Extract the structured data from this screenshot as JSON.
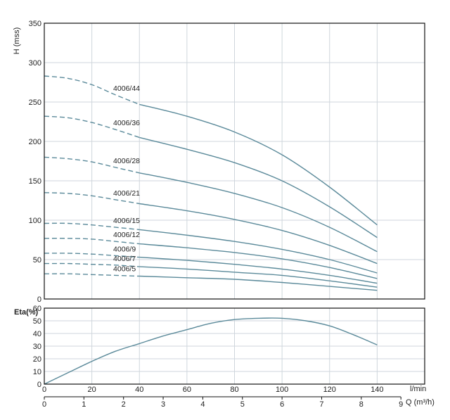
{
  "chart_data": [
    {
      "type": "line",
      "ylabel": "H (mss)",
      "ylim": [
        0,
        350
      ],
      "yticks": [
        0,
        50,
        100,
        150,
        200,
        250,
        300,
        350
      ],
      "x_unit": "l/min",
      "xlim": [
        0,
        160
      ],
      "grid": true,
      "dashed_region_max_x": 40,
      "series": [
        {
          "name": "4006/44",
          "x": [
            0,
            10,
            20,
            30,
            40,
            60,
            80,
            100,
            120,
            140
          ],
          "values": [
            283,
            280,
            272,
            259,
            247,
            232,
            212,
            183,
            142,
            94
          ]
        },
        {
          "name": "4006/36",
          "x": [
            0,
            10,
            20,
            30,
            40,
            60,
            80,
            100,
            120,
            140
          ],
          "values": [
            232,
            230,
            224,
            215,
            205,
            190,
            173,
            150,
            117,
            78
          ]
        },
        {
          "name": "4006/28",
          "x": [
            0,
            10,
            20,
            30,
            40,
            60,
            80,
            100,
            120,
            140
          ],
          "values": [
            180,
            178,
            174,
            167,
            160,
            148,
            134,
            116,
            91,
            60
          ]
        },
        {
          "name": "4006/21",
          "x": [
            0,
            10,
            20,
            30,
            40,
            60,
            80,
            100,
            120,
            140
          ],
          "values": [
            135,
            134,
            131,
            126,
            121,
            112,
            101,
            87,
            68,
            45
          ]
        },
        {
          "name": "4006/15",
          "x": [
            0,
            10,
            20,
            30,
            40,
            60,
            80,
            100,
            120,
            140
          ],
          "values": [
            96,
            96,
            94,
            91,
            88,
            81,
            73,
            63,
            50,
            33
          ]
        },
        {
          "name": "4006/12",
          "x": [
            0,
            10,
            20,
            30,
            40,
            60,
            80,
            100,
            120,
            140
          ],
          "values": [
            77,
            77,
            76,
            73,
            70,
            65,
            59,
            51,
            40,
            26
          ]
        },
        {
          "name": "4006/9",
          "x": [
            0,
            10,
            20,
            30,
            40,
            60,
            80,
            100,
            120,
            140
          ],
          "values": [
            58,
            58,
            57,
            55,
            53,
            49,
            44,
            38,
            30,
            20
          ]
        },
        {
          "name": "4006/7",
          "x": [
            0,
            10,
            20,
            30,
            40,
            60,
            80,
            100,
            120,
            140
          ],
          "values": [
            45,
            45,
            44,
            43,
            41,
            38,
            34,
            30,
            23,
            15
          ]
        },
        {
          "name": "4006/5",
          "x": [
            0,
            10,
            20,
            30,
            40,
            60,
            80,
            100,
            120,
            140
          ],
          "values": [
            32,
            32,
            31,
            30,
            29,
            27,
            25,
            21,
            16,
            11
          ]
        }
      ]
    },
    {
      "type": "line",
      "ylabel": "Eta(%)",
      "ylim": [
        0,
        60
      ],
      "yticks": [
        0,
        10,
        20,
        30,
        40,
        50,
        60
      ],
      "x_unit": "l/min",
      "xlim": [
        0,
        160
      ],
      "grid": true,
      "series": [
        {
          "name": "",
          "x": [
            0,
            10,
            20,
            30,
            40,
            50,
            60,
            70,
            80,
            90,
            100,
            110,
            120,
            130,
            140
          ],
          "values": [
            0,
            9,
            18,
            26,
            32,
            38,
            43,
            48,
            51,
            52,
            52,
            50,
            46,
            39,
            31
          ]
        }
      ]
    }
  ],
  "x_axis_lmin": {
    "unit": "l/min",
    "ticks": [
      "0",
      "20",
      "40",
      "60",
      "80",
      "100",
      "120",
      "140"
    ],
    "tick_values": [
      0,
      20,
      40,
      60,
      80,
      100,
      120,
      140
    ]
  },
  "x_axis_m3h": {
    "label": "Q (m³/h)",
    "ticks": [
      "0",
      "1",
      "2",
      "3",
      "4",
      "5",
      "6",
      "7",
      "8",
      "9"
    ],
    "tick_values": [
      0,
      1,
      2,
      3,
      4,
      5,
      6,
      7,
      8,
      9
    ]
  },
  "colors": {
    "curve": "#5b8a9a",
    "grid": "#cfd6dc",
    "frame": "#111111"
  }
}
